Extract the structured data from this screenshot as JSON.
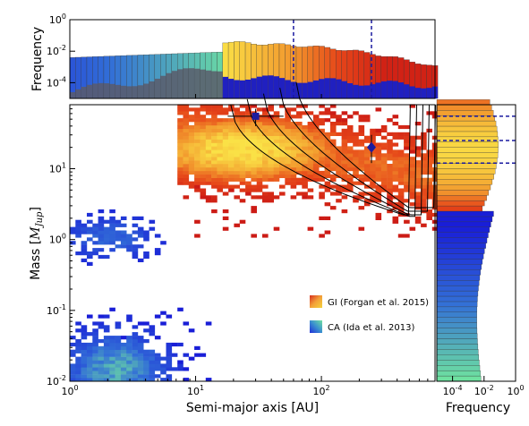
{
  "chart_data": [
    {
      "type": "heatmap",
      "panel": "main",
      "xlabel": "Semi-major axis [AU]",
      "ylabel": "Mass [",
      "ylabel_math": "M",
      "ylabel_sub": "Jup",
      "ylabel_close": "]",
      "xscale": "log",
      "yscale": "log",
      "xlim": [
        1,
        800
      ],
      "ylim": [
        0.01,
        80
      ],
      "xticks": [
        {
          "value": 1,
          "label_base": "10",
          "label_exp": "0"
        },
        {
          "value": 10,
          "label_base": "10",
          "label_exp": "1"
        },
        {
          "value": 100,
          "label_base": "10",
          "label_exp": "2"
        }
      ],
      "yticks": [
        {
          "value": 0.01,
          "label_base": "10",
          "label_exp": "-2"
        },
        {
          "value": 0.1,
          "label_base": "10",
          "label_exp": "-1"
        },
        {
          "value": 1,
          "label_base": "10",
          "label_exp": "0"
        },
        {
          "value": 10,
          "label_base": "10",
          "label_exp": "1"
        }
      ],
      "series": [
        {
          "name": "GI (Forgan et al. 2015)",
          "colormap": "yellow-orange-red",
          "regions": [
            {
              "loga": [
                0.9,
                2.9
              ],
              "logm": [
                0.35,
                1.9
              ],
              "density": "high"
            },
            {
              "loga": [
                0.95,
                1.9
              ],
              "logm": [
                0.9,
                1.9
              ],
              "density": "peak"
            }
          ]
        },
        {
          "name": "CA (Ida et al. 2013)",
          "colormap": "green-blue",
          "regions": [
            {
              "loga": [
                0.0,
                1.0
              ],
              "logm": [
                -2.0,
                -1.0
              ],
              "density": "high"
            },
            {
              "loga": [
                0.0,
                0.6
              ],
              "logm": [
                -0.3,
                0.2
              ],
              "density": "sparse"
            }
          ]
        }
      ],
      "observed_points": [
        {
          "a": 30,
          "m": 55,
          "a_err": [
            18,
            50
          ],
          "m_err": [
            40,
            70
          ]
        },
        {
          "a": 250,
          "m": 20,
          "a_err": [
            235,
            265
          ],
          "m_err": [
            12,
            30
          ]
        }
      ],
      "contour_levels": 5,
      "legend": "center-right"
    },
    {
      "type": "bar",
      "panel": "top-histogram",
      "ylabel": "Frequency",
      "xscale": "log",
      "yscale": "log",
      "ylim": [
        1e-05,
        1
      ],
      "yticks": [
        {
          "value": 1,
          "label_base": "10",
          "label_exp": "0"
        },
        {
          "value": 0.01,
          "label_base": "10",
          "label_exp": "-2"
        },
        {
          "value": 0.0001,
          "label_base": "10",
          "label_exp": "-4"
        }
      ],
      "series": [
        {
          "name": "CA (Ida et al. 2013)",
          "loga": [
            0.0,
            1.18
          ],
          "frequency": [
            0.004,
            0.006,
            0.008,
            0.01,
            0.012
          ]
        },
        {
          "name": "GI (Forgan et al. 2015)",
          "loga": [
            1.18,
            2.9
          ],
          "frequency": [
            0.02,
            0.03,
            0.015,
            0.006,
            0.002,
            0.0005
          ]
        }
      ],
      "reference_lines_a": [
        60,
        250
      ]
    },
    {
      "type": "bar",
      "panel": "right-histogram",
      "xlabel": "Frequency",
      "xscale": "log",
      "xlim": [
        1e-05,
        1
      ],
      "xticks": [
        {
          "value": 0.0001,
          "label_base": "10",
          "label_exp": "-4"
        },
        {
          "value": 0.01,
          "label_base": "10",
          "label_exp": "-2"
        },
        {
          "value": 1,
          "label_base": "10",
          "label_exp": "0"
        }
      ],
      "reference_lines_m": [
        12,
        25,
        55
      ]
    }
  ]
}
